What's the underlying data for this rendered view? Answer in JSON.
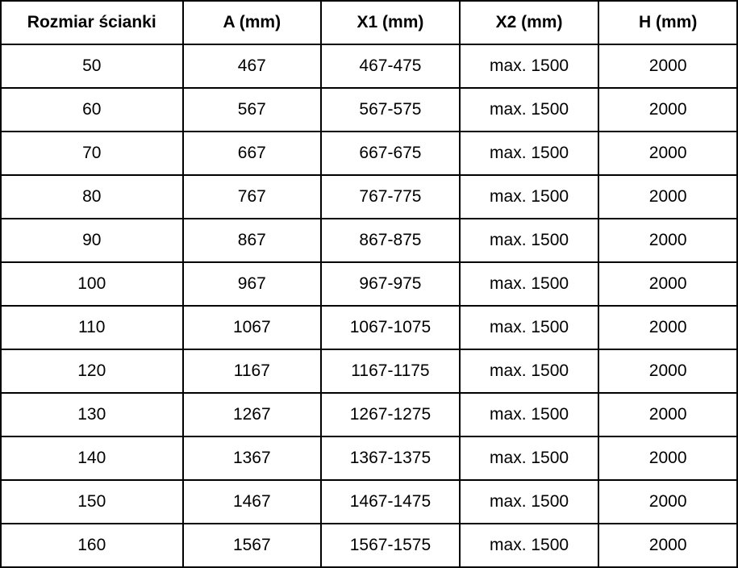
{
  "colors": {
    "background": "#ffffff",
    "border": "#000000",
    "text": "#000000"
  },
  "table": {
    "columns": [
      "Rozmiar ścianki",
      "A (mm)",
      "X1 (mm)",
      "X2 (mm)",
      "H (mm)"
    ],
    "rows": [
      [
        "50",
        "467",
        "467-475",
        "max. 1500",
        "2000"
      ],
      [
        "60",
        "567",
        "567-575",
        "max. 1500",
        "2000"
      ],
      [
        "70",
        "667",
        "667-675",
        "max. 1500",
        "2000"
      ],
      [
        "80",
        "767",
        "767-775",
        "max. 1500",
        "2000"
      ],
      [
        "90",
        "867",
        "867-875",
        "max. 1500",
        "2000"
      ],
      [
        "100",
        "967",
        "967-975",
        "max. 1500",
        "2000"
      ],
      [
        "110",
        "1067",
        "1067-1075",
        "max. 1500",
        "2000"
      ],
      [
        "120",
        "1167",
        "1167-1175",
        "max. 1500",
        "2000"
      ],
      [
        "130",
        "1267",
        "1267-1275",
        "max. 1500",
        "2000"
      ],
      [
        "140",
        "1367",
        "1367-1375",
        "max. 1500",
        "2000"
      ],
      [
        "150",
        "1467",
        "1467-1475",
        "max. 1500",
        "2000"
      ],
      [
        "160",
        "1567",
        "1567-1575",
        "max. 1500",
        "2000"
      ]
    ]
  }
}
